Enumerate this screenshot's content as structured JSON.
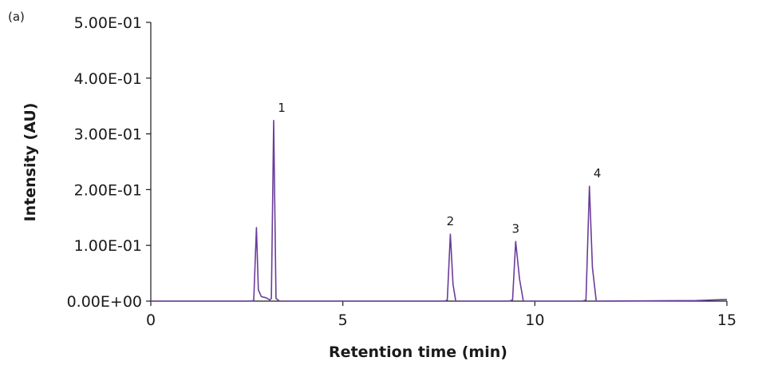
{
  "panel_label": "(a)",
  "chart_data": {
    "type": "line",
    "title": "",
    "xlabel": "Retention time (min)",
    "ylabel": "Intensity (AU)",
    "xlim": [
      0,
      15
    ],
    "ylim": [
      0,
      0.5
    ],
    "x_ticks": [
      "0",
      "5",
      "10",
      "15"
    ],
    "y_ticks": [
      "0.00E+00",
      "1.00E-01",
      "2.00E-01",
      "3.00E-01",
      "4.00E-01",
      "5.00E-01"
    ],
    "grid": false,
    "legend": null,
    "line_color": "#6a3d9a",
    "peaks": [
      {
        "label": "",
        "retention_time": 2.75,
        "intensity": 0.132
      },
      {
        "label": "1",
        "retention_time": 3.2,
        "intensity": 0.324
      },
      {
        "label": "2",
        "retention_time": 7.8,
        "intensity": 0.12
      },
      {
        "label": "3",
        "retention_time": 9.5,
        "intensity": 0.107
      },
      {
        "label": "4",
        "retention_time": 11.42,
        "intensity": 0.206
      }
    ],
    "series": [
      {
        "name": "chromatogram",
        "x": [
          0,
          2.6,
          2.68,
          2.75,
          2.8,
          2.88,
          3.0,
          3.1,
          3.14,
          3.2,
          3.26,
          3.35,
          5,
          7.65,
          7.72,
          7.8,
          7.87,
          7.94,
          9.32,
          9.42,
          9.5,
          9.6,
          9.7,
          11.24,
          11.33,
          11.42,
          11.5,
          11.6,
          14.2,
          15
        ],
        "y": [
          0,
          0,
          0.001,
          0.132,
          0.02,
          0.008,
          0.006,
          0.002,
          0.005,
          0.324,
          0.005,
          0,
          0,
          0,
          0.002,
          0.12,
          0.03,
          0,
          0,
          0.002,
          0.107,
          0.04,
          0,
          0,
          0.002,
          0.206,
          0.06,
          0,
          0.001,
          0.003
        ]
      }
    ]
  }
}
